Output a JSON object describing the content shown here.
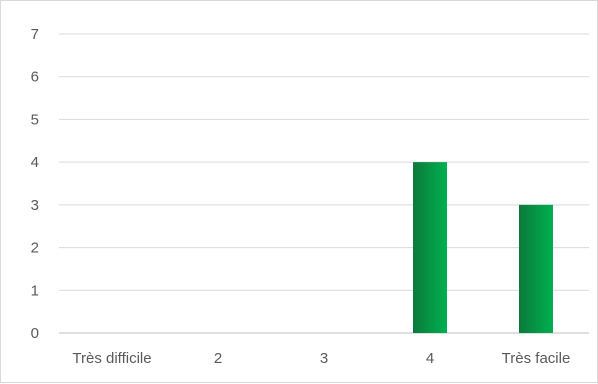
{
  "chart_data": {
    "type": "bar",
    "categories": [
      "Très difficile",
      "2",
      "3",
      "4",
      "Très facile"
    ],
    "values": [
      0,
      0,
      0,
      4,
      3
    ],
    "ylim": [
      0,
      7
    ],
    "yticks": [
      0,
      1,
      2,
      3,
      4,
      5,
      6,
      7
    ],
    "grid": true,
    "legend": "none",
    "colors": {
      "bar_dark": "#0b7a3b",
      "bar_light": "#00b050",
      "grid": "#d9d9d9",
      "axis": "#bfbfbf",
      "text": "#595959"
    }
  }
}
